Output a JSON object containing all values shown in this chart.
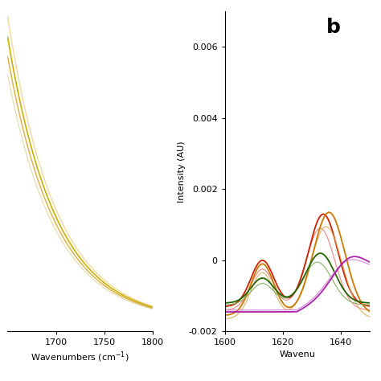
{
  "panel_a": {
    "xlabel": "Wavenumbers (cm⁻¹)",
    "xlim": [
      1650,
      1800
    ],
    "xticks": [
      1700,
      1750,
      1800
    ],
    "colors": [
      "#c8b200",
      "#d4a020",
      "#e8c060",
      "#c0a840"
    ],
    "alphas": [
      1.0,
      0.8,
      0.6,
      0.4
    ],
    "lws": [
      1.2,
      1.1,
      1.0,
      0.9
    ]
  },
  "panel_b": {
    "xlabel": "Wavenu",
    "ylabel": "Intensity (AU)",
    "xlim": [
      1600,
      1650
    ],
    "ylim": [
      -0.002,
      0.007
    ],
    "yticks": [
      -0.002,
      0,
      0.002,
      0.004,
      0.006
    ],
    "xticks": [
      1600,
      1620,
      1640
    ],
    "label": "b",
    "colors_solid": [
      "#cc2200",
      "#cc7700",
      "#226600",
      "#aa22aa"
    ],
    "colors_light": [
      "#ee7777",
      "#ddaa55",
      "#77aa55",
      "#cc77cc"
    ]
  },
  "background_color": "#ffffff",
  "fig_width": 4.74,
  "fig_height": 4.74,
  "dpi": 100
}
